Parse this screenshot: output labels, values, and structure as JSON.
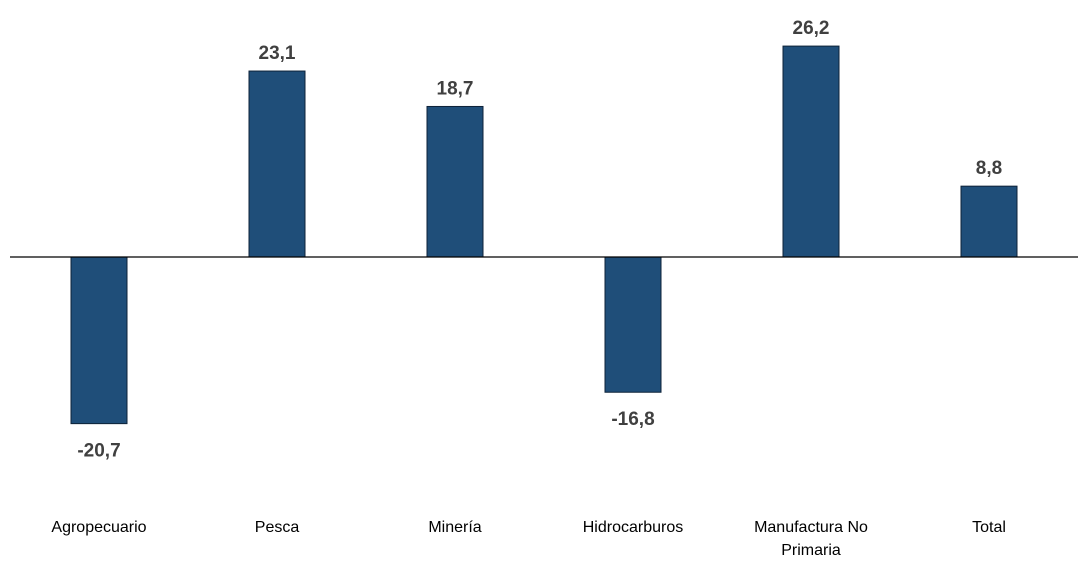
{
  "chart_data": {
    "type": "bar",
    "categories": [
      "Agropecuario",
      "Pesca",
      "Minería",
      "Hidrocarburos",
      "Manufactura No Primaria",
      "Total"
    ],
    "category_lines": [
      [
        "Agropecuario"
      ],
      [
        "Pesca"
      ],
      [
        "Minería"
      ],
      [
        "Hidrocarburos"
      ],
      [
        "Manufactura No",
        "Primaria"
      ],
      [
        "Total"
      ]
    ],
    "values": [
      -20.7,
      23.1,
      18.7,
      -16.8,
      26.2,
      8.8
    ],
    "value_labels": [
      "-20,7",
      "23,1",
      "18,7",
      "-16,8",
      "26,2",
      "8,8"
    ],
    "title": "",
    "xlabel": "",
    "ylabel": "",
    "ylim": [
      -24,
      29
    ],
    "grid": false,
    "bar_color": "#1f4e79"
  }
}
